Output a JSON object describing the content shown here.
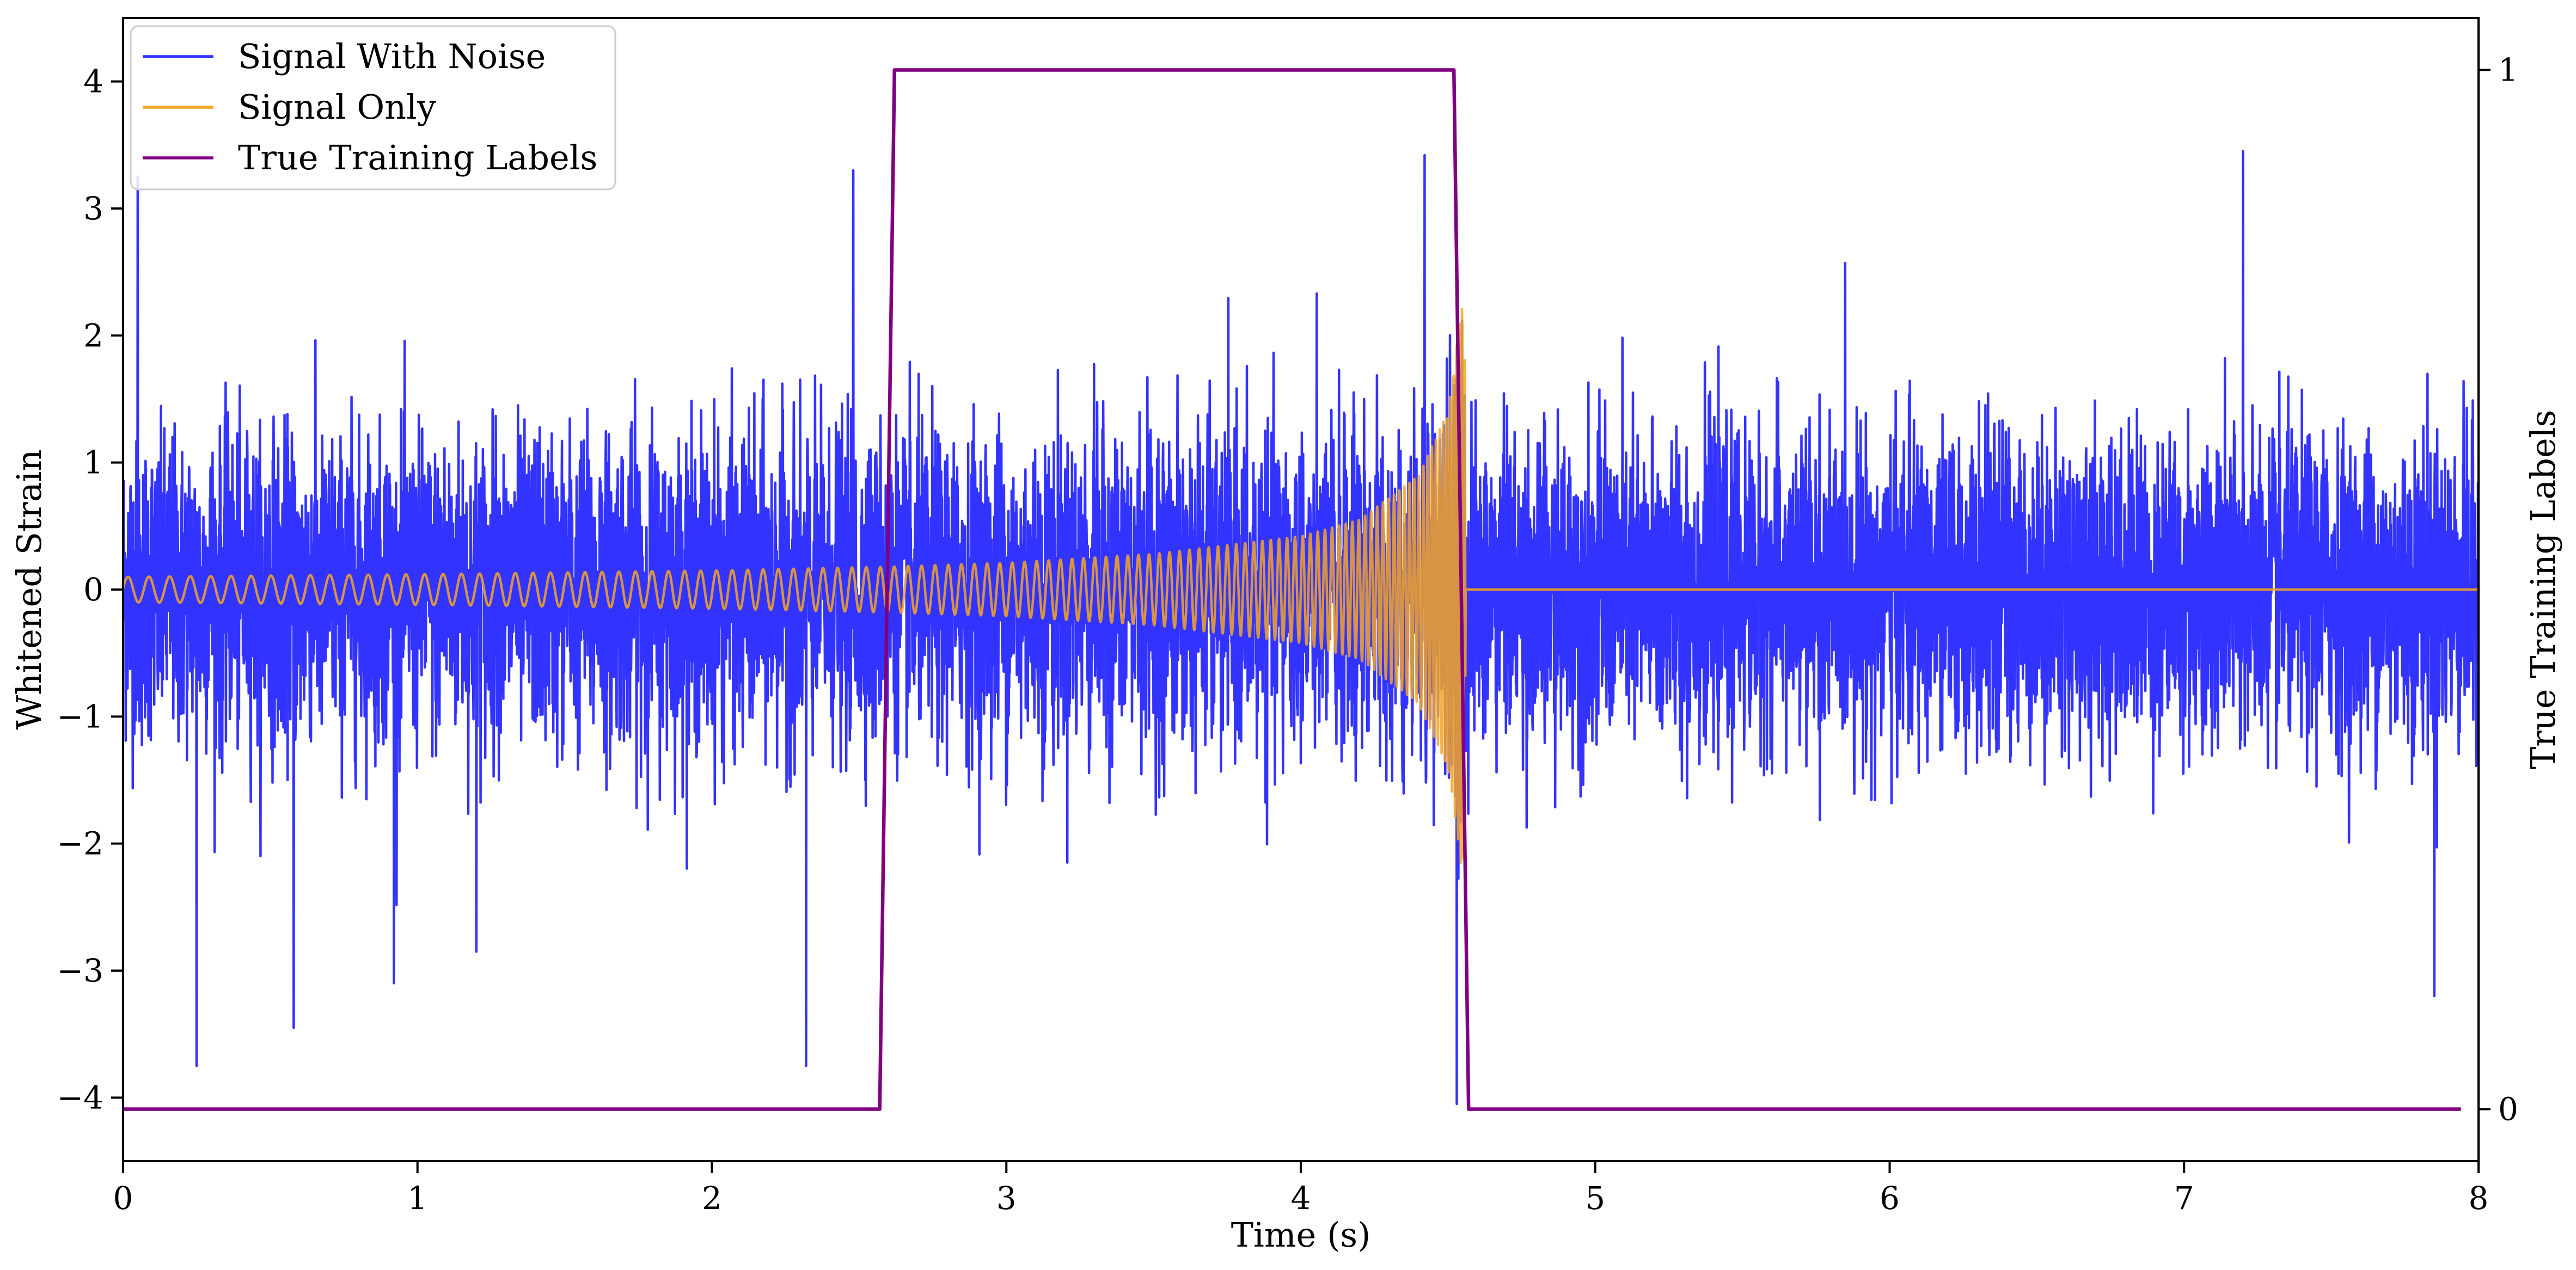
{
  "chart_data": {
    "type": "line",
    "title": "",
    "xlabel": "Time (s)",
    "ylabel": "Whitened Strain",
    "ylabel_right": "True Training Labels",
    "xlim": [
      0,
      8
    ],
    "ylim": [
      -4.5,
      4.5
    ],
    "ylim_right": [
      -0.05,
      1.05
    ],
    "xticks": [
      0,
      1,
      2,
      3,
      4,
      5,
      6,
      7,
      8
    ],
    "xtick_labels": [
      "0",
      "1",
      "2",
      "3",
      "4",
      "5",
      "6",
      "7",
      "8"
    ],
    "yticks": [
      -4,
      -3,
      -2,
      -1,
      0,
      1,
      2,
      3,
      4
    ],
    "ytick_labels": [
      "−4",
      "−3",
      "−2",
      "−1",
      "0",
      "1",
      "2",
      "3",
      "4"
    ],
    "yticks_right": [
      0,
      1
    ],
    "ytick_labels_right": [
      "0",
      "1"
    ],
    "grid": false,
    "legend_position": "upper-left",
    "series": [
      {
        "name": "Signal With Noise",
        "color": "#3333ff",
        "axis": "left",
        "approx_std": 0.6,
        "peaks": [
          {
            "x": 0.05,
            "y": 3.25
          },
          {
            "x": 0.25,
            "y": -3.75
          },
          {
            "x": 0.58,
            "y": -3.45
          },
          {
            "x": 0.92,
            "y": -3.1
          },
          {
            "x": 1.2,
            "y": -2.85
          },
          {
            "x": 2.32,
            "y": -3.75
          },
          {
            "x": 2.48,
            "y": 3.3
          },
          {
            "x": 4.42,
            "y": 3.42
          },
          {
            "x": 4.53,
            "y": -4.05
          },
          {
            "x": 7.2,
            "y": 3.45
          },
          {
            "x": 7.85,
            "y": -3.2
          }
        ]
      },
      {
        "name": "Signal Only",
        "color": "#f5a623",
        "axis": "left",
        "x": [
          0,
          1,
          2,
          2.6,
          3,
          3.5,
          4,
          4.2,
          4.4,
          4.5,
          4.55,
          4.58,
          5,
          6,
          7,
          8
        ],
        "envelope": [
          0.1,
          0.12,
          0.15,
          0.18,
          0.21,
          0.28,
          0.42,
          0.55,
          0.9,
          1.4,
          2.3,
          0,
          0,
          0,
          0,
          0
        ]
      },
      {
        "name": "True Training Labels",
        "color": "#800080",
        "axis": "right",
        "x": [
          0,
          2.57,
          2.62,
          4.52,
          4.57,
          7.94
        ],
        "y": [
          0,
          0,
          1,
          1,
          0,
          0
        ]
      }
    ]
  }
}
